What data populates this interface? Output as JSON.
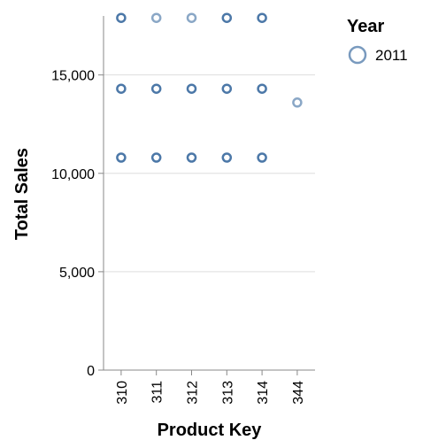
{
  "chart_data": {
    "type": "scatter",
    "xlabel": "Product Key",
    "ylabel": "Total Sales",
    "categories": [
      "310",
      "311",
      "312",
      "313",
      "314",
      "344"
    ],
    "ylim": [
      0,
      18000
    ],
    "yticks": [
      0,
      5000,
      10000,
      15000
    ],
    "ytick_labels": [
      "0",
      "5,000",
      "10,000",
      "15,000"
    ],
    "grid": true,
    "legend": {
      "title": "Year",
      "placement": "top-right",
      "entries": [
        "2011"
      ]
    },
    "series": [
      {
        "name": "2011",
        "color": "#4c78a8",
        "points": [
          {
            "x": "310",
            "y": 17900
          },
          {
            "x": "310",
            "y": 14300
          },
          {
            "x": "310",
            "y": 10800
          },
          {
            "x": "311",
            "y": 17900
          },
          {
            "x": "311",
            "y": 14300
          },
          {
            "x": "311",
            "y": 10800
          },
          {
            "x": "312",
            "y": 17900
          },
          {
            "x": "312",
            "y": 14300
          },
          {
            "x": "312",
            "y": 10800
          },
          {
            "x": "313",
            "y": 17900
          },
          {
            "x": "313",
            "y": 14300
          },
          {
            "x": "313",
            "y": 10800
          },
          {
            "x": "314",
            "y": 17900
          },
          {
            "x": "314",
            "y": 14300
          },
          {
            "x": "314",
            "y": 10800
          },
          {
            "x": "344",
            "y": 13600
          }
        ]
      }
    ]
  }
}
